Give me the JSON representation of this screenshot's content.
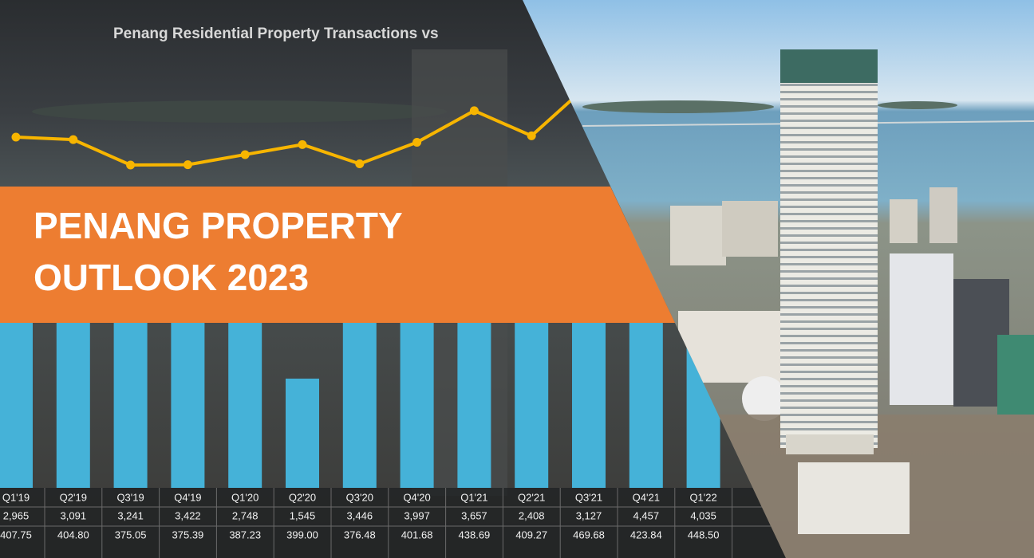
{
  "chart": {
    "title": "Penang Residential Property Transactions vs",
    "columns": [
      "Q1'19",
      "Q2'19",
      "Q3'19",
      "Q4'19",
      "Q1'20",
      "Q2'20",
      "Q3'20",
      "Q4'20",
      "Q1'21",
      "Q2'21",
      "Q3'21",
      "Q4'21",
      "Q1'22"
    ],
    "transactions": {
      "values": [
        2965,
        3091,
        3241,
        3422,
        2748,
        1545,
        3446,
        3997,
        3657,
        2408,
        3127,
        4457,
        4035
      ],
      "value_labels": [
        "2,965",
        "3,091",
        "3,241",
        "3,422",
        "2,748",
        "1,545",
        "3,446",
        "3,997",
        "3,657",
        "2,408",
        "3,127",
        "4,457",
        "4,035"
      ]
    },
    "prices": {
      "values": [
        407.75,
        404.8,
        375.05,
        375.39,
        387.23,
        399.0,
        376.48,
        401.68,
        438.69,
        409.27,
        469.68,
        423.84,
        448.5
      ],
      "value_labels": [
        "407.75",
        "404.80",
        "375.05",
        "375.39",
        "387.23",
        "399.00",
        "376.48",
        "401.68",
        "438.69",
        "409.27",
        "469.68",
        "423.84",
        "448.50"
      ]
    }
  },
  "banner": {
    "lines": [
      "PENANG PROPERTY",
      "OUTLOOK 2023"
    ]
  }
}
